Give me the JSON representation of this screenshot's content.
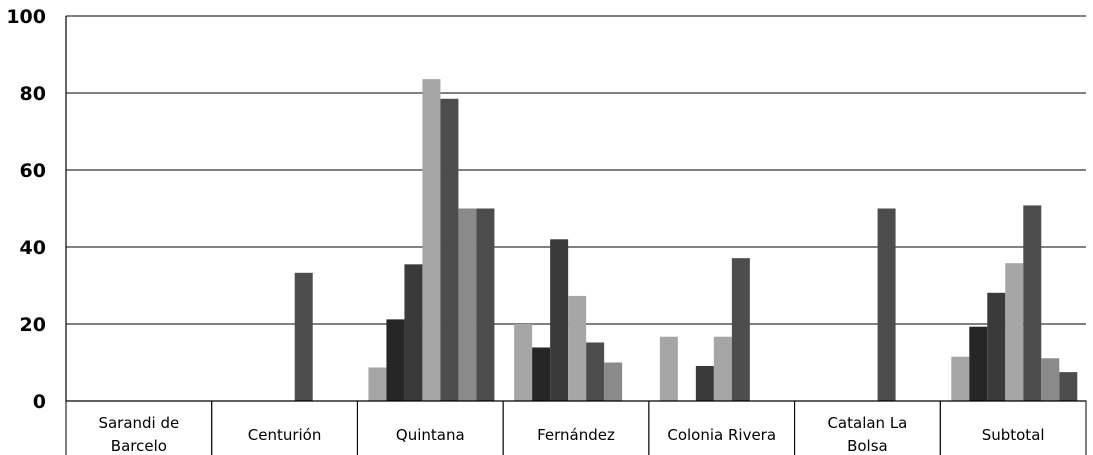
{
  "chart_data": {
    "type": "bar",
    "ylim": [
      0,
      100
    ],
    "yticks": [
      0,
      20,
      40,
      60,
      80,
      100
    ],
    "yticks_labels": [
      "0",
      "20",
      "40",
      "60",
      "80",
      "100"
    ],
    "grid": true,
    "categories": [
      [
        "Sarandi de",
        "Barcelo"
      ],
      [
        "Centurión"
      ],
      [
        "Quintana"
      ],
      [
        "Fernández"
      ],
      [
        "Colonia Rivera"
      ],
      [
        "Catalan La",
        "Bolsa"
      ],
      [
        "Subtotal"
      ]
    ],
    "series_colors": [
      "#a6a6a6",
      "#262626",
      "#3a3a3a",
      "#a6a6a6",
      "#4d4d4d",
      "#8a8a8a",
      "#4d4d4d"
    ],
    "values": [
      [
        0,
        0,
        0,
        0,
        0,
        0,
        0
      ],
      [
        0,
        0,
        0,
        0,
        33.3,
        0,
        0
      ],
      [
        8.7,
        21.2,
        35.5,
        83.6,
        78.5,
        50,
        50
      ],
      [
        20,
        13.9,
        42,
        27.3,
        15.2,
        10,
        0
      ],
      [
        16.7,
        0,
        9.1,
        16.7,
        37.1,
        0,
        0
      ],
      [
        0,
        0,
        0,
        0,
        50,
        0,
        0
      ],
      [
        11.5,
        19.3,
        28.1,
        35.8,
        50.8,
        11.1,
        7.5
      ]
    ]
  }
}
